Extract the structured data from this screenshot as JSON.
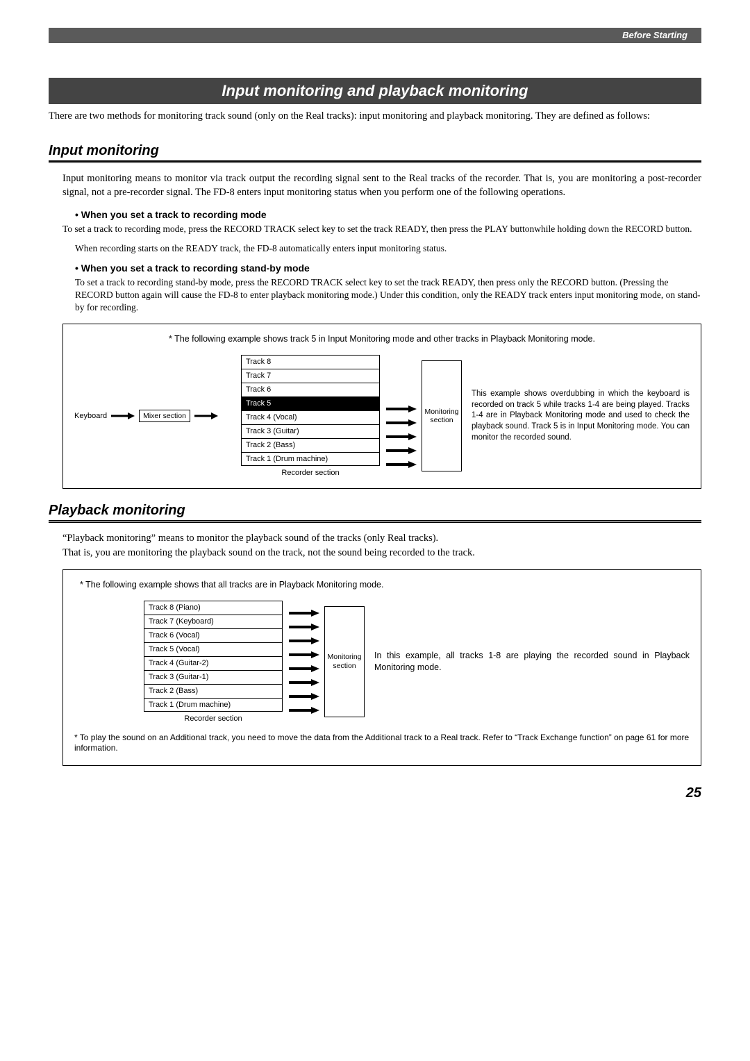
{
  "header": {
    "section": "Before Starting"
  },
  "title": "Input monitoring and playback monitoring",
  "intro": "There are two methods for monitoring track sound (only on the Real tracks): input monitoring and playback monitoring. They are defined as follows:",
  "input_monitoring": {
    "heading": "Input monitoring",
    "text": "Input monitoring means to monitor via track output the recording signal sent to the Real tracks of the recorder. That is, you are monitoring a post-recorder signal, not a pre-recorder signal.  The FD-8 enters input monitoring status when you perform one of the following operations.",
    "bullets": [
      {
        "heading": "• When you set a track to recording mode",
        "text1": "To set a track to recording mode, press the RECORD TRACK select key to set the track READY, then press the PLAY buttonwhile holding down the RECORD button.",
        "text2": "When recording starts on the READY track, the FD-8 automatically enters input monitoring status."
      },
      {
        "heading": "• When you set a track to recording stand-by mode",
        "text1": "To set a track to recording stand-by mode, press the RECORD TRACK select key to set the track READY, then press only the RECORD button. (Pressing the RECORD button again will cause the FD-8 to enter playback monitoring mode.) Under this condition, only the READY track enters input monitoring mode, on stand-by for recording."
      }
    ]
  },
  "diagram1": {
    "caption": "* The following example shows track 5 in Input Monitoring mode and other tracks in Playback Monitoring mode.",
    "keyboard": "Keyboard",
    "mixer": "Mixer section",
    "tracks": [
      {
        "label": "Track 8",
        "highlight": false,
        "arrow": false
      },
      {
        "label": "Track 7",
        "highlight": false,
        "arrow": false
      },
      {
        "label": "Track 6",
        "highlight": false,
        "arrow": false
      },
      {
        "label": "Track 5",
        "highlight": true,
        "arrow": true
      },
      {
        "label": "Track 4 (Vocal)",
        "highlight": false,
        "arrow": true
      },
      {
        "label": "Track 3 (Guitar)",
        "highlight": false,
        "arrow": true
      },
      {
        "label": "Track 2 (Bass)",
        "highlight": false,
        "arrow": true
      },
      {
        "label": "Track 1 (Drum machine)",
        "highlight": false,
        "arrow": true
      }
    ],
    "recorder": "Recorder section",
    "monitoring": "Monitoring section",
    "note": "This example shows overdubbing in which the keyboard is recorded on track 5 while tracks 1-4 are being played. Tracks 1-4 are in Playback Monitoring mode and used to check the playback sound. Track 5 is in Input Monitoring mode. You can monitor the recorded sound."
  },
  "playback_monitoring": {
    "heading": "Playback monitoring",
    "text": "“Playback monitoring” means to monitor the playback sound of the tracks (only Real tracks).\nThat is, you are monitoring the playback sound on the track, not the sound being recorded to the track."
  },
  "diagram2": {
    "caption": "* The following example shows that all tracks are in Playback Monitoring mode.",
    "tracks": [
      {
        "label": "Track 8 (Piano)",
        "arrow": true
      },
      {
        "label": "Track 7 (Keyboard)",
        "arrow": true
      },
      {
        "label": "Track 6 (Vocal)",
        "arrow": true
      },
      {
        "label": "Track 5 (Vocal)",
        "arrow": true
      },
      {
        "label": "Track 4 (Guitar-2)",
        "arrow": true
      },
      {
        "label": "Track 3 (Guitar-1)",
        "arrow": true
      },
      {
        "label": "Track 2 (Bass)",
        "arrow": true
      },
      {
        "label": "Track 1 (Drum machine)",
        "arrow": true
      }
    ],
    "recorder": "Recorder section",
    "monitoring": "Monitoring section",
    "note": "In this example, all tracks 1-8 are playing the recorded sound in Playback Monitoring mode.",
    "footnote": "* To play the sound on an Additional track, you need to move the data from the Additional track to a Real track. Refer to “Track Exchange function” on page 61 for more information."
  },
  "page_number": "25",
  "colors": {
    "bar": "#444444",
    "header": "#5a5a5a"
  }
}
